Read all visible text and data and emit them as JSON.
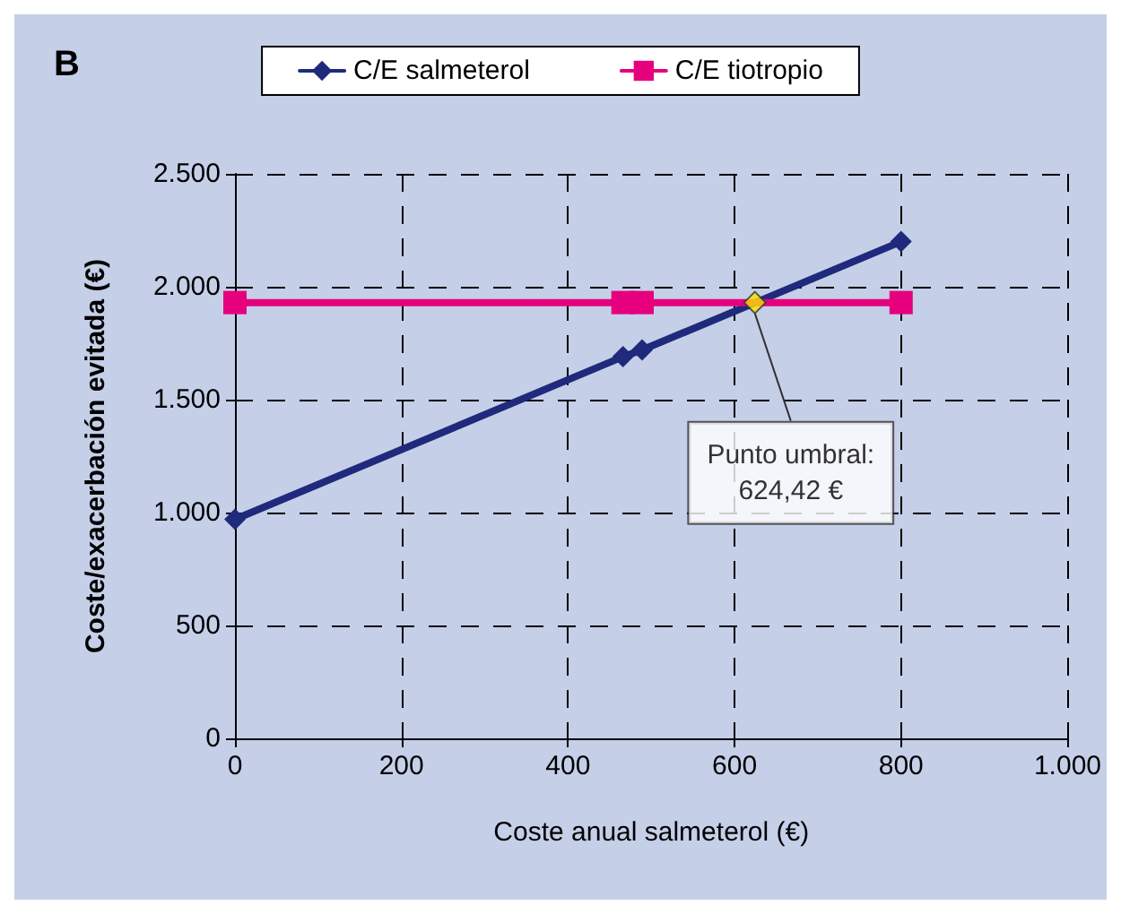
{
  "chart_data": {
    "type": "line",
    "xlabel": "Coste anual salmeterol (€)",
    "ylabel": "Coste/exacerbación evitada (€)",
    "series": [
      {
        "name": "C/E salmeterol",
        "color": "#1f2a7c",
        "marker": "diamond",
        "x": [
          0,
          466,
          489,
          800
        ],
        "values": [
          970,
          1690,
          1720,
          2200
        ]
      },
      {
        "name": "C/E tiotropio",
        "color": "#e6007e",
        "marker": "square",
        "x": [
          0,
          466,
          489,
          800
        ],
        "values": [
          1930,
          1930,
          1930,
          1930
        ]
      }
    ],
    "xlim": [
      0,
      1000
    ],
    "xticks": [
      0,
      200,
      400,
      600,
      800,
      {
        "value": 1000,
        "label": "1.000"
      }
    ],
    "ylim": [
      0,
      2500
    ],
    "yticks": [
      0,
      500,
      {
        "value": 1000,
        "label": "1.000"
      },
      {
        "value": 1500,
        "label": "1.500"
      },
      {
        "value": 2000,
        "label": "2.000"
      },
      {
        "value": 2500,
        "label": "2.500"
      }
    ],
    "grid": true,
    "legend": "top",
    "line_style": "solid",
    "annotations": [
      "B",
      {
        "text": "Punto umbral:\n624,42 €",
        "x": 624.42,
        "y": 1930
      }
    ]
  }
}
